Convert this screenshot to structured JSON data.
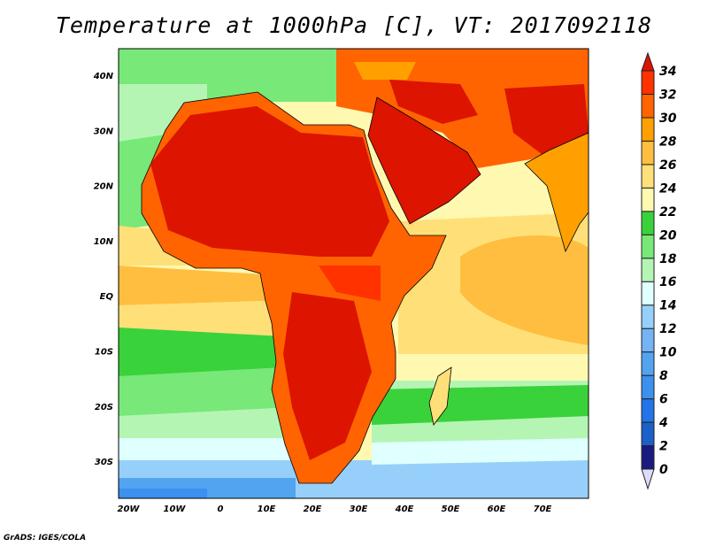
{
  "title": "Temperature at 1000hPa [C], VT: 2017092118",
  "credit": "GrADS: IGES/COLA",
  "x_ticks": [
    "20W",
    "10W",
    "0",
    "10E",
    "20E",
    "30E",
    "40E",
    "50E",
    "60E",
    "70E"
  ],
  "y_ticks": [
    "40N",
    "30N",
    "20N",
    "10N",
    "EQ",
    "10S",
    "20S",
    "30S"
  ],
  "colorbar": {
    "labels": [
      "0",
      "2",
      "4",
      "6",
      "8",
      "10",
      "12",
      "14",
      "16",
      "18",
      "20",
      "22",
      "24",
      "26",
      "28",
      "30",
      "32",
      "34"
    ],
    "colors": [
      "#1a1a80",
      "#1a60c8",
      "#2274e8",
      "#3c90f0",
      "#52a4f0",
      "#74b4f4",
      "#96d0fa",
      "#e0ffff",
      "#b4f5b4",
      "#78e878",
      "#3ad23a",
      "#fff8b0",
      "#ffe078",
      "#ffbe40",
      "#ffa000",
      "#ff6400",
      "#ff3200"
    ],
    "under_color": "#dcdcff",
    "over_color": "#dc1400"
  }
}
